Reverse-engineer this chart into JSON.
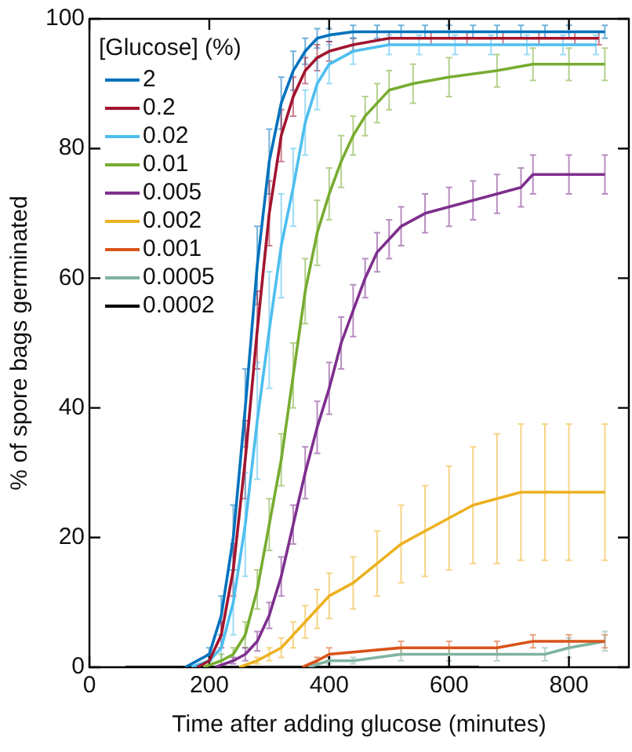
{
  "chart_data": {
    "type": "line",
    "xlabel": "Time after adding glucose (minutes)",
    "ylabel": "% of spore bags germinated",
    "legend_title": "[Glucose] (%)",
    "legend": "top left",
    "grid": false,
    "marker": "none",
    "line_style": "solid",
    "xlim": [
      0,
      900
    ],
    "xticks": [
      0,
      200,
      400,
      600,
      800
    ],
    "ylim": [
      0,
      100
    ],
    "yticks": [
      0,
      20,
      40,
      60,
      80,
      100
    ],
    "series": [
      {
        "name": "2",
        "color": "#0072bd",
        "x": [
          160,
          200,
          220,
          240,
          260,
          280,
          300,
          320,
          340,
          360,
          380,
          400,
          440,
          480,
          520,
          560,
          600,
          640,
          680,
          720,
          760,
          800,
          860
        ],
        "values": [
          0,
          2,
          8,
          20,
          40,
          62,
          78,
          87,
          92,
          95,
          97,
          97.5,
          98,
          98,
          98,
          98,
          98,
          98,
          98,
          98,
          98,
          98,
          98
        ],
        "errors": [
          0,
          1,
          3,
          5,
          6,
          6,
          5,
          4,
          3,
          2,
          1.5,
          1,
          1,
          1,
          1,
          1,
          1,
          1,
          1,
          1,
          1,
          1,
          1
        ]
      },
      {
        "name": "0.2",
        "color": "#a2142f",
        "x": [
          180,
          200,
          220,
          240,
          260,
          280,
          300,
          320,
          340,
          360,
          380,
          400,
          440,
          500,
          570,
          630,
          690,
          750,
          810,
          850
        ],
        "values": [
          0,
          1,
          5,
          15,
          32,
          52,
          70,
          82,
          88,
          92,
          94,
          95,
          96,
          97,
          97,
          97,
          97,
          97,
          97,
          97
        ],
        "errors": [
          0,
          1,
          2,
          4,
          6,
          6,
          5,
          4,
          3,
          2,
          2,
          1.5,
          1,
          1,
          1,
          1,
          1,
          1,
          1,
          1
        ]
      },
      {
        "name": "0.02",
        "color": "#4dbeee",
        "x": [
          170,
          200,
          220,
          240,
          260,
          280,
          300,
          320,
          340,
          360,
          380,
          400,
          440,
          500,
          550,
          610,
          670,
          730,
          790,
          845
        ],
        "values": [
          0,
          1,
          3,
          10,
          22,
          38,
          52,
          65,
          74,
          84,
          90,
          93,
          95,
          96,
          96,
          96,
          96,
          96,
          96,
          96
        ],
        "errors": [
          0,
          1,
          2,
          5,
          8,
          9,
          9,
          8,
          6,
          5,
          4,
          3,
          2,
          1.5,
          1.5,
          1.5,
          1.5,
          1.5,
          1.5,
          1.5
        ]
      },
      {
        "name": "0.01",
        "color": "#77ac30",
        "x": [
          190,
          220,
          240,
          260,
          280,
          300,
          320,
          340,
          360,
          380,
          400,
          420,
          440,
          460,
          480,
          500,
          540,
          600,
          680,
          740,
          800,
          860
        ],
        "values": [
          0,
          1,
          2,
          5,
          12,
          22,
          32,
          45,
          58,
          67,
          73,
          78,
          82,
          85,
          87,
          89,
          90,
          91,
          92,
          93,
          93,
          93
        ],
        "errors": [
          0,
          1,
          1,
          2,
          3,
          4,
          4,
          5,
          5,
          5,
          4,
          4,
          3,
          3,
          3,
          3,
          3,
          3,
          2.5,
          2.5,
          2.5,
          2.5
        ]
      },
      {
        "name": "0.005",
        "color": "#7e2f8e",
        "x": [
          210,
          240,
          260,
          280,
          300,
          320,
          340,
          360,
          380,
          400,
          420,
          440,
          460,
          480,
          500,
          520,
          560,
          600,
          640,
          680,
          720,
          740,
          800,
          860
        ],
        "values": [
          0,
          1,
          2,
          4,
          8,
          14,
          22,
          30,
          37,
          43,
          50,
          55,
          60,
          64,
          66,
          68,
          70,
          71,
          72,
          73,
          74,
          76,
          76,
          76
        ],
        "errors": [
          0,
          0.5,
          1,
          1.5,
          2,
          3,
          3,
          4,
          4,
          4,
          4,
          4,
          3,
          3,
          3,
          3,
          3,
          3,
          3,
          3,
          3,
          3,
          3,
          3
        ]
      },
      {
        "name": "0.002",
        "color": "#edb120",
        "x": [
          250,
          280,
          300,
          320,
          340,
          360,
          380,
          400,
          440,
          480,
          520,
          560,
          600,
          640,
          680,
          720,
          760,
          800,
          860
        ],
        "values": [
          0,
          1,
          2,
          3,
          5,
          7,
          9,
          11,
          13,
          16,
          19,
          21,
          23,
          25,
          26,
          27,
          27,
          27,
          27
        ],
        "errors": [
          0,
          0.5,
          1,
          1.5,
          2,
          2.5,
          3,
          3.5,
          4,
          5,
          6,
          7,
          8,
          9,
          10,
          10.5,
          10.5,
          10.5,
          10.5
        ]
      },
      {
        "name": "0.001",
        "color": "#d95319",
        "x": [
          355,
          380,
          400,
          520,
          600,
          680,
          740,
          800,
          860
        ],
        "values": [
          0,
          1,
          2,
          3,
          3,
          3,
          4,
          4,
          4
        ],
        "errors": [
          0,
          0.5,
          1,
          1,
          1,
          1,
          1,
          1,
          1
        ]
      },
      {
        "name": "0.0005",
        "color": "#7fb3a0",
        "x": [
          365,
          400,
          440,
          520,
          600,
          680,
          760,
          800,
          860
        ],
        "values": [
          0,
          1,
          1,
          2,
          2,
          2,
          2,
          3,
          4
        ],
        "errors": [
          0,
          0.5,
          0.5,
          1,
          1,
          1,
          1,
          1.5,
          1.5
        ]
      },
      {
        "name": "0.0002",
        "color": "#000000",
        "x": [
          60,
          130,
          200,
          270,
          340,
          420,
          500,
          580,
          650
        ],
        "values": [
          0,
          0,
          0,
          0,
          0,
          0,
          0,
          0,
          0
        ],
        "errors": [
          0,
          0,
          0,
          0,
          0,
          0,
          0,
          0,
          0
        ]
      }
    ]
  }
}
